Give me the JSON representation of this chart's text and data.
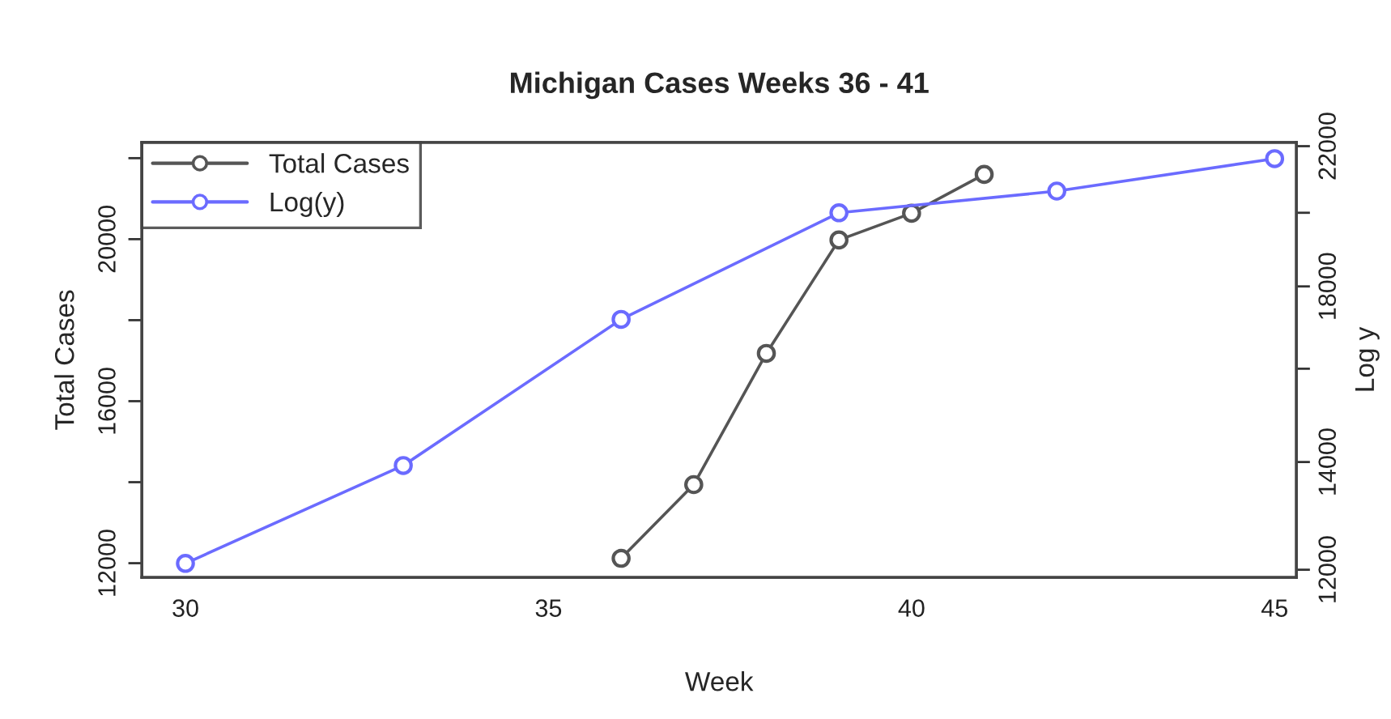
{
  "chart_data": {
    "type": "line",
    "title": "Michigan Cases Weeks 36 - 41",
    "xlabel": "Week",
    "ylabel": "Total Cases",
    "y2label": "Log y",
    "series": [
      {
        "name": "Total Cases",
        "color": "#555555",
        "x": [
          36,
          37,
          38,
          39,
          40,
          41
        ],
        "values": [
          12120,
          13940,
          17180,
          19980,
          20640,
          21600
        ]
      },
      {
        "name": "Log(y)",
        "color": "#6b6bff",
        "axis": "y2",
        "x": [
          30,
          33,
          36,
          39,
          42,
          45
        ],
        "values": [
          12110,
          13930,
          17170,
          20000,
          20630,
          21610
        ]
      }
    ],
    "xlim": [
      29.4,
      45.3
    ],
    "xticks": [
      30,
      35,
      40,
      45
    ],
    "ylim": [
      11650,
      22390
    ],
    "yticks": [
      12000,
      {
        "value": 14000,
        "label": null
      },
      16000,
      {
        "value": 18000,
        "label": null
      },
      20000,
      {
        "value": 22000,
        "label": null
      }
    ],
    "y2lim": [
      11870,
      22120
    ],
    "y2ticks": [
      12000,
      14000,
      {
        "value": 16000,
        "label": null
      },
      18000,
      {
        "value": 20000,
        "label": null
      },
      22000
    ],
    "log": "y2",
    "marker": "circle",
    "legend": "top left",
    "grid": false
  }
}
